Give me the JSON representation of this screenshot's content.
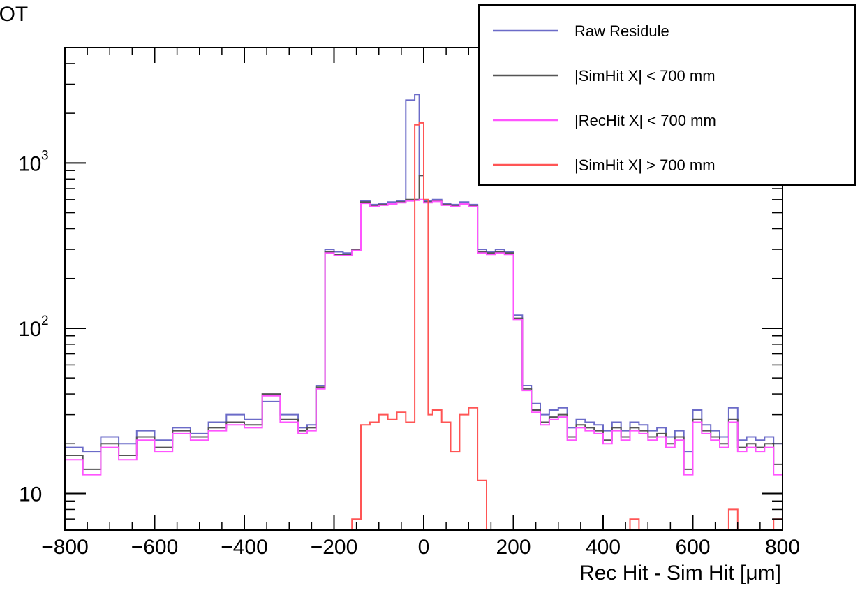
{
  "chart_data": {
    "type": "line",
    "title": "LL BOT",
    "xlabel": "Rec Hit - Sim Hit [μm]",
    "ylabel": "",
    "xlim": [
      -800,
      800
    ],
    "ylim": [
      6,
      5000
    ],
    "yscale": "log",
    "x_ticks": [
      -800,
      -600,
      -400,
      -200,
      0,
      200,
      400,
      600,
      800
    ],
    "y_ticks": [
      {
        "value": 10,
        "base": "10",
        "exp": ""
      },
      {
        "value": 100,
        "base": "10",
        "exp": "2"
      },
      {
        "value": 1000,
        "base": "10",
        "exp": "3"
      }
    ],
    "legend_position": "top-right",
    "grid": false,
    "series": [
      {
        "name": "Raw Residule",
        "color": "#6b6bc8",
        "edges": [
          -800,
          -760,
          -720,
          -680,
          -640,
          -600,
          -560,
          -520,
          -480,
          -440,
          -400,
          -360,
          -320,
          -280,
          -260,
          -240,
          -220,
          -200,
          -180,
          -160,
          -140,
          -120,
          -100,
          -80,
          -60,
          -40,
          -20,
          -10,
          0,
          10,
          20,
          40,
          60,
          80,
          100,
          120,
          140,
          160,
          180,
          200,
          220,
          240,
          260,
          280,
          300,
          320,
          340,
          360,
          380,
          400,
          420,
          440,
          460,
          480,
          500,
          520,
          540,
          560,
          580,
          600,
          620,
          640,
          660,
          680,
          700,
          720,
          740,
          760,
          780,
          800
        ],
        "values": [
          19,
          18,
          22,
          20,
          24,
          21,
          25,
          23,
          27,
          30,
          28,
          36,
          30,
          25,
          26,
          45,
          300,
          290,
          285,
          300,
          590,
          560,
          570,
          580,
          590,
          2400,
          2600,
          840,
          590,
          590,
          600,
          570,
          560,
          580,
          560,
          300,
          290,
          300,
          290,
          120,
          45,
          35,
          30,
          32,
          33,
          25,
          28,
          27,
          26,
          24,
          27,
          24,
          27,
          26,
          24,
          25,
          22,
          24,
          18,
          32,
          26,
          24,
          22,
          33,
          21,
          22,
          21,
          22,
          20,
          23
        ]
      },
      {
        "name": "|SimHit X| < 700 mm",
        "color": "#555555",
        "edges": [
          -800,
          -760,
          -720,
          -680,
          -640,
          -600,
          -560,
          -520,
          -480,
          -440,
          -400,
          -360,
          -320,
          -280,
          -260,
          -240,
          -220,
          -200,
          -180,
          -160,
          -140,
          -120,
          -100,
          -80,
          -60,
          -40,
          -20,
          -10,
          0,
          10,
          20,
          40,
          60,
          80,
          100,
          120,
          140,
          160,
          180,
          200,
          220,
          240,
          260,
          280,
          300,
          320,
          340,
          360,
          380,
          400,
          420,
          440,
          460,
          480,
          500,
          520,
          540,
          560,
          580,
          600,
          620,
          640,
          660,
          680,
          700,
          720,
          740,
          760,
          780,
          800
        ],
        "values": [
          17,
          14,
          20,
          17,
          22,
          19,
          24,
          22,
          25,
          27,
          26,
          40,
          28,
          24,
          25,
          44,
          290,
          280,
          280,
          300,
          580,
          550,
          560,
          570,
          580,
          600,
          600,
          840,
          580,
          580,
          590,
          560,
          550,
          570,
          550,
          290,
          285,
          290,
          285,
          115,
          43,
          32,
          27,
          29,
          30,
          22,
          26,
          25,
          24,
          21,
          25,
          22,
          25,
          24,
          22,
          23,
          20,
          22,
          14,
          28,
          24,
          22,
          20,
          28,
          19,
          20,
          19,
          20,
          15,
          19
        ]
      },
      {
        "name": "|RecHit X| < 700 mm",
        "color": "#ff55ff",
        "edges": [
          -800,
          -760,
          -720,
          -680,
          -640,
          -600,
          -560,
          -520,
          -480,
          -440,
          -400,
          -360,
          -320,
          -280,
          -260,
          -240,
          -220,
          -200,
          -180,
          -160,
          -140,
          -120,
          -100,
          -80,
          -60,
          -40,
          -20,
          -10,
          0,
          10,
          20,
          40,
          60,
          80,
          100,
          120,
          140,
          160,
          180,
          200,
          220,
          240,
          260,
          280,
          300,
          320,
          340,
          360,
          380,
          400,
          420,
          440,
          460,
          480,
          500,
          520,
          540,
          560,
          580,
          600,
          620,
          640,
          660,
          680,
          700,
          720,
          740,
          760,
          780,
          800
        ],
        "values": [
          16,
          13,
          19,
          16,
          21,
          18,
          23,
          21,
          24,
          26,
          25,
          39,
          27,
          23,
          24,
          43,
          285,
          275,
          275,
          295,
          570,
          545,
          555,
          565,
          575,
          590,
          595,
          600,
          575,
          575,
          585,
          555,
          545,
          565,
          545,
          285,
          280,
          285,
          280,
          113,
          42,
          31,
          26,
          28,
          29,
          21,
          25,
          24,
          23,
          20,
          24,
          21,
          24,
          23,
          21,
          22,
          19,
          21,
          13,
          27,
          23,
          21,
          19,
          27,
          18,
          19,
          18,
          19,
          13,
          18
        ]
      },
      {
        "name": "|SimHit X| > 700 mm",
        "color": "#ff5555",
        "edges": [
          -800,
          -760,
          -720,
          -680,
          -640,
          -600,
          -560,
          -520,
          -480,
          -440,
          -400,
          -360,
          -320,
          -280,
          -260,
          -240,
          -220,
          -200,
          -180,
          -160,
          -140,
          -120,
          -100,
          -80,
          -60,
          -40,
          -20,
          -10,
          0,
          10,
          20,
          40,
          60,
          80,
          100,
          120,
          140,
          160,
          180,
          200,
          220,
          240,
          260,
          280,
          300,
          320,
          340,
          360,
          380,
          400,
          420,
          440,
          460,
          480,
          500,
          520,
          540,
          560,
          580,
          600,
          620,
          640,
          660,
          680,
          700,
          720,
          740,
          760,
          780,
          800
        ],
        "values": [
          0,
          0,
          0,
          0,
          0,
          0,
          0,
          0,
          0,
          0,
          0,
          0,
          0,
          0,
          0,
          0,
          0,
          0,
          0,
          7,
          26,
          27,
          30,
          28,
          31,
          27,
          1700,
          1750,
          600,
          30,
          32,
          27,
          18,
          30,
          33,
          12,
          0,
          0,
          0,
          0,
          0,
          0,
          0,
          0,
          0,
          0,
          0,
          0,
          0,
          0,
          0,
          0,
          7,
          0,
          0,
          0,
          0,
          0,
          0,
          0,
          0,
          0,
          0,
          8,
          0,
          0,
          0,
          0,
          7,
          0
        ]
      }
    ]
  }
}
